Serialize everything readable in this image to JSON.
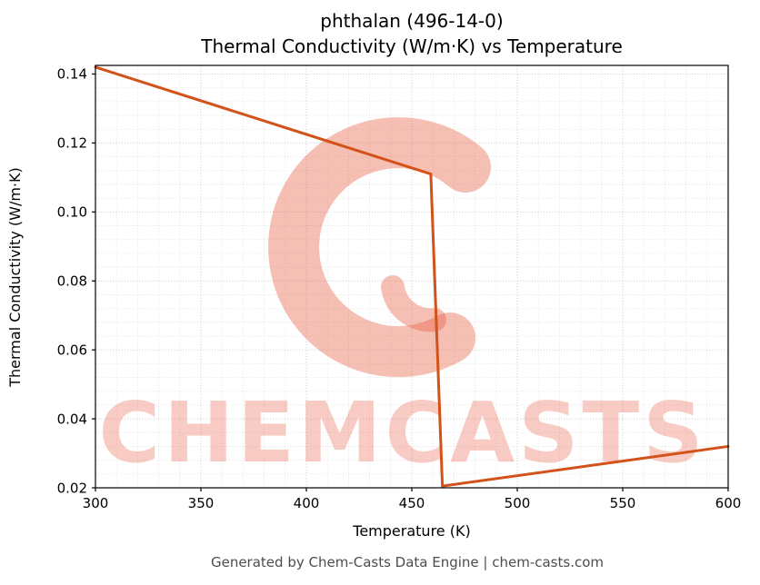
{
  "figure": {
    "footer": "Generated by Chem-Casts Data Engine | chem-casts.com"
  },
  "watermark": {
    "logo_glyph": "C",
    "text": "CHEMCASTS",
    "color": "#e8573a",
    "logo_opacity": 0.38,
    "text_opacity": 0.3
  },
  "chart_data": {
    "type": "line",
    "title_line1": "phthalan (496-14-0)",
    "title_line2": "Thermal Conductivity (W/m·K) vs Temperature",
    "xlabel": "Temperature (K)",
    "ylabel": "Thermal Conductivity (W/m·K)",
    "xlim": [
      300,
      600
    ],
    "ylim": [
      0.02,
      0.1425
    ],
    "xticks": [
      300,
      350,
      400,
      450,
      500,
      550,
      600
    ],
    "xtick_labels": [
      "300",
      "350",
      "400",
      "450",
      "500",
      "550",
      "600"
    ],
    "yticks": [
      0.02,
      0.04,
      0.06,
      0.08,
      0.1,
      0.12,
      0.14
    ],
    "ytick_labels": [
      "0.02",
      "0.04",
      "0.06",
      "0.08",
      "0.10",
      "0.12",
      "0.14"
    ],
    "grid": true,
    "minor_x_step": 10,
    "minor_y_step": 0.004,
    "line_color": "#d2521a",
    "series": [
      {
        "name": "thermal-conductivity",
        "points": [
          [
            300,
            0.142
          ],
          [
            459,
            0.111
          ],
          [
            464.5,
            0.0205
          ],
          [
            600,
            0.032
          ]
        ]
      }
    ]
  }
}
